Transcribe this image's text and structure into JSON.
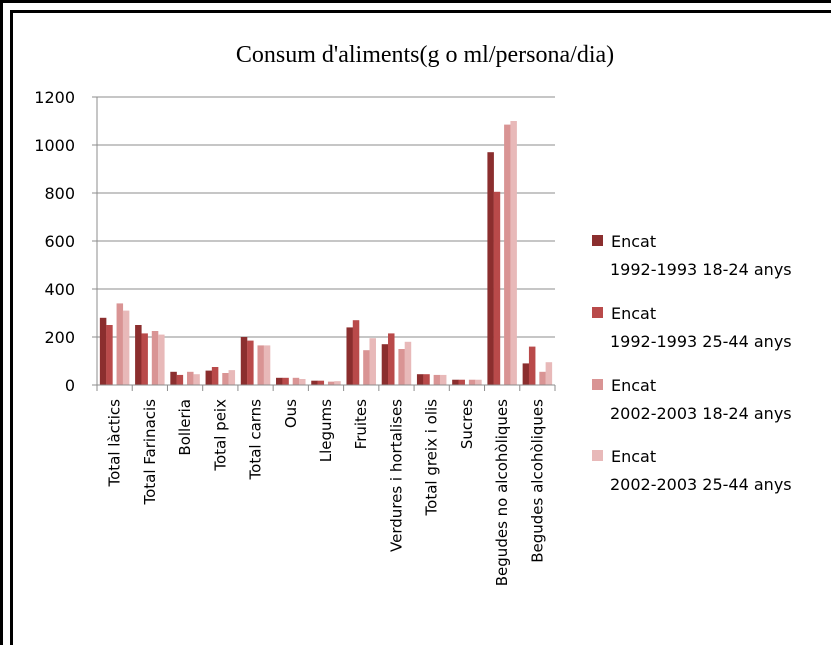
{
  "chart_data": {
    "type": "bar",
    "title": "Consum d'aliments(g o ml/persona/dia)",
    "xlabel": "",
    "ylabel": "",
    "ylim": [
      0,
      1200
    ],
    "yticks": [
      0,
      200,
      400,
      600,
      800,
      1000,
      1200
    ],
    "grid": true,
    "legend_position": "right",
    "categories": [
      "Total làctics",
      "Total Farinacis",
      "Bolleria",
      "Total peix",
      "Total carns",
      "Ous",
      "Llegums",
      "Fruites",
      "Verdures i hortalises",
      "Total greix i olis",
      "Sucres",
      "Begudes no alcohòliques",
      "Begudes alcohòliques"
    ],
    "series": [
      {
        "name": "Encat 1992-1993 18-24 anys",
        "legend_lines": [
          "Encat",
          "1992-1993 18-24 anys"
        ],
        "color": "#8b2e2e",
        "values": [
          280,
          250,
          55,
          60,
          200,
          30,
          18,
          240,
          170,
          45,
          22,
          970,
          90
        ]
      },
      {
        "name": "Encat 1992-1993 25-44 anys",
        "legend_lines": [
          "Encat",
          "1992-1993 25-44 anys"
        ],
        "color": "#b94a4a",
        "values": [
          250,
          215,
          42,
          75,
          185,
          30,
          18,
          270,
          215,
          45,
          22,
          805,
          160
        ]
      },
      {
        "name": "Encat 2002-2003 18-24 anys",
        "legend_lines": [
          "Encat",
          "2002-2003 18-24 anys"
        ],
        "color": "#d99494",
        "values": [
          340,
          225,
          55,
          50,
          165,
          30,
          14,
          145,
          150,
          42,
          22,
          1085,
          55
        ]
      },
      {
        "name": "Encat 2002-2003 25-44 anys",
        "legend_lines": [
          "Encat",
          "2002-2003 25-44 anys"
        ],
        "color": "#e8b9b9",
        "values": [
          310,
          210,
          45,
          62,
          165,
          25,
          16,
          195,
          180,
          42,
          22,
          1100,
          95
        ]
      }
    ]
  }
}
